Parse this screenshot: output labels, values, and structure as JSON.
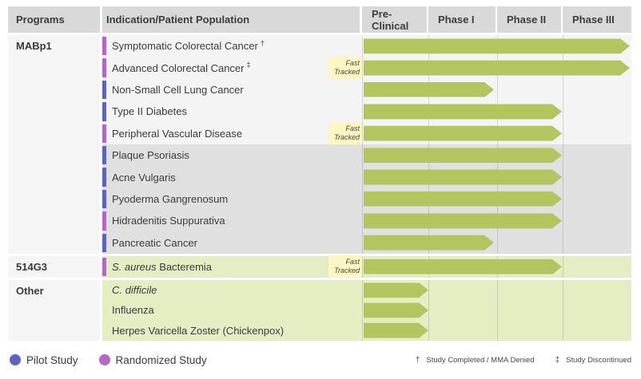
{
  "colors": {
    "pilot": "#5b64c0",
    "randomized": "#b468c5",
    "arrow": "#b2c55e",
    "header_bg": "#d9d9d9",
    "program_bg": "#f5f5f5",
    "row_light": "#f4f4f4",
    "row_dark": "#e0e0e0",
    "row_green": "#e5edc3",
    "badge_bg": "#fbf6c3"
  },
  "table": {
    "col_programs": "Programs",
    "col_indication": "Indication/Patient Population"
  },
  "badge": {
    "line1": "Fast",
    "line2": "Tracked"
  },
  "chart_data": {
    "type": "bar",
    "orientation": "horizontal",
    "phases": [
      "Pre-Clinical",
      "Phase I",
      "Phase II",
      "Phase III"
    ],
    "blocks": [
      {
        "program": "MABp1",
        "rows": [
          {
            "label": "Symptomatic Colorectal Cancer",
            "mark": "†",
            "study": "randomized",
            "progress": "Phase III",
            "shade": "light",
            "fast_tracked": false
          },
          {
            "label": "Advanced Colorectal Cancer",
            "mark": "‡",
            "study": "randomized",
            "progress": "Phase III",
            "shade": "light",
            "fast_tracked": true
          },
          {
            "label": "Non-Small Cell Lung Cancer",
            "study": "pilot",
            "progress": "Phase I",
            "shade": "light",
            "fast_tracked": false
          },
          {
            "label": "Type II Diabetes",
            "study": "pilot",
            "progress": "Phase II",
            "shade": "light",
            "fast_tracked": false
          },
          {
            "label": "Peripheral Vascular Disease",
            "study": "randomized",
            "progress": "Phase II",
            "shade": "light",
            "fast_tracked": true
          },
          {
            "label": "Plaque Psoriasis",
            "study": "pilot",
            "progress": "Phase II",
            "shade": "dark",
            "fast_tracked": false
          },
          {
            "label": "Acne Vulgaris",
            "study": "pilot",
            "progress": "Phase II",
            "shade": "dark",
            "fast_tracked": false
          },
          {
            "label": "Pyoderma Gangrenosum",
            "study": "pilot",
            "progress": "Phase II",
            "shade": "dark",
            "fast_tracked": false
          },
          {
            "label": "Hidradenitis Suppurativa",
            "study": "randomized",
            "progress": "Phase II",
            "shade": "dark",
            "fast_tracked": false
          },
          {
            "label": "Pancreatic Cancer",
            "study": "pilot",
            "progress": "Phase I",
            "shade": "dark",
            "fast_tracked": false
          }
        ]
      },
      {
        "program": "514G3",
        "rows": [
          {
            "em": "S. aureus",
            "label": " Bacteremia",
            "study": "randomized",
            "progress": "Phase II",
            "shade": "green",
            "fast_tracked": true
          }
        ]
      },
      {
        "program": "Other",
        "rows": [
          {
            "em": "C. difficile",
            "progress": "Pre-Clinical",
            "shade": "green",
            "fast_tracked": false
          },
          {
            "label": "Influenza",
            "progress": "Pre-Clinical",
            "shade": "green",
            "fast_tracked": false
          },
          {
            "label": "Herpes Varicella Zoster (Chickenpox)",
            "progress": "Pre-Clinical",
            "shade": "green",
            "fast_tracked": false
          }
        ]
      }
    ]
  },
  "legend": {
    "items": [
      {
        "type": "pilot",
        "label": "Pilot Study"
      },
      {
        "type": "randomized",
        "label": "Randomized Study"
      }
    ],
    "notes": [
      {
        "mark": "†",
        "text": "Study Completed / MMA Denied"
      },
      {
        "mark": "‡",
        "text": "Study Discontinued"
      }
    ]
  }
}
